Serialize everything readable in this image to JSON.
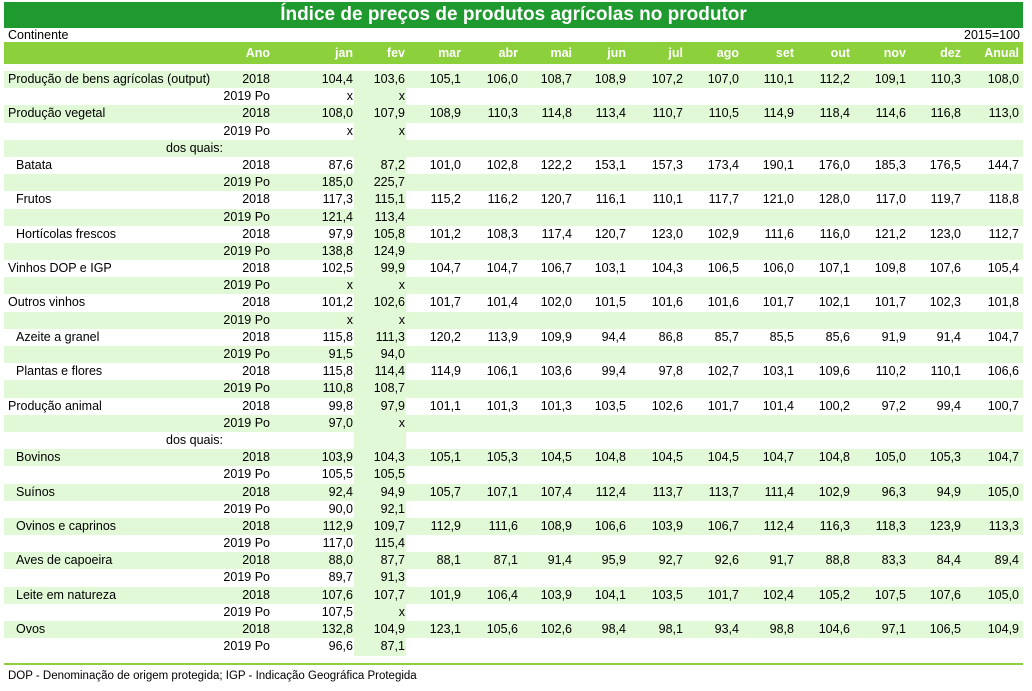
{
  "title": "Índice de preços de produtos agrícolas no produtor",
  "region": "Continente",
  "base": "2015=100",
  "columns": [
    "Ano",
    "jan",
    "fev",
    "mar",
    "abr",
    "mai",
    "jun",
    "jul",
    "ago",
    "set",
    "out",
    "nov",
    "dez",
    "Anual"
  ],
  "rows": [
    {
      "label": "Produção de bens agrícolas (output)",
      "indent": 0,
      "year": "2018",
      "values": [
        "104,4",
        "103,6",
        "105,1",
        "106,0",
        "108,7",
        "108,9",
        "107,2",
        "107,0",
        "110,1",
        "112,2",
        "109,1",
        "110,3",
        "108,0"
      ]
    },
    {
      "label": "",
      "indent": 0,
      "year": "2019 Po",
      "values": [
        "x",
        "x",
        "",
        "",
        "",
        "",
        "",
        "",
        "",
        "",
        "",
        "",
        ""
      ]
    },
    {
      "label": "Produção vegetal",
      "indent": 0,
      "year": "2018",
      "values": [
        "108,0",
        "107,9",
        "108,9",
        "110,3",
        "114,8",
        "113,4",
        "110,7",
        "110,5",
        "114,9",
        "118,4",
        "114,6",
        "116,8",
        "113,0"
      ]
    },
    {
      "label": "",
      "indent": 0,
      "year": "2019 Po",
      "values": [
        "x",
        "x",
        "",
        "",
        "",
        "",
        "",
        "",
        "",
        "",
        "",
        "",
        ""
      ]
    },
    {
      "label": "dos quais:",
      "indent": 2,
      "year": "",
      "values": [
        "",
        "",
        "",
        "",
        "",
        "",
        "",
        "",
        "",
        "",
        "",
        "",
        ""
      ]
    },
    {
      "label": "Batata",
      "indent": 1,
      "year": "2018",
      "values": [
        "87,6",
        "87,2",
        "101,0",
        "102,8",
        "122,2",
        "153,1",
        "157,3",
        "173,4",
        "190,1",
        "176,0",
        "185,3",
        "176,5",
        "144,7"
      ]
    },
    {
      "label": "",
      "indent": 0,
      "year": "2019 Po",
      "values": [
        "185,0",
        "225,7",
        "",
        "",
        "",
        "",
        "",
        "",
        "",
        "",
        "",
        "",
        ""
      ]
    },
    {
      "label": "Frutos",
      "indent": 1,
      "year": "2018",
      "values": [
        "117,3",
        "115,1",
        "115,2",
        "116,2",
        "120,7",
        "116,1",
        "110,1",
        "117,7",
        "121,0",
        "128,0",
        "117,0",
        "119,7",
        "118,8"
      ]
    },
    {
      "label": "",
      "indent": 0,
      "year": "2019 Po",
      "values": [
        "121,4",
        "113,4",
        "",
        "",
        "",
        "",
        "",
        "",
        "",
        "",
        "",
        "",
        ""
      ]
    },
    {
      "label": "Hortícolas frescos",
      "indent": 1,
      "year": "2018",
      "values": [
        "97,9",
        "105,8",
        "101,2",
        "108,3",
        "117,4",
        "120,7",
        "123,0",
        "102,9",
        "111,6",
        "116,0",
        "121,2",
        "123,0",
        "112,7"
      ]
    },
    {
      "label": "",
      "indent": 0,
      "year": "2019 Po",
      "values": [
        "138,8",
        "124,9",
        "",
        "",
        "",
        "",
        "",
        "",
        "",
        "",
        "",
        "",
        ""
      ]
    },
    {
      "label": "Vinhos DOP e IGP",
      "indent": 0,
      "year": "2018",
      "values": [
        "102,5",
        "99,9",
        "104,7",
        "104,7",
        "106,7",
        "103,1",
        "104,3",
        "106,5",
        "106,0",
        "107,1",
        "109,8",
        "107,6",
        "105,4"
      ]
    },
    {
      "label": "",
      "indent": 0,
      "year": "2019 Po",
      "values": [
        "x",
        "x",
        "",
        "",
        "",
        "",
        "",
        "",
        "",
        "",
        "",
        "",
        ""
      ]
    },
    {
      "label": "Outros vinhos",
      "indent": 0,
      "year": "2018",
      "values": [
        "101,2",
        "102,6",
        "101,7",
        "101,4",
        "102,0",
        "101,5",
        "101,6",
        "101,6",
        "101,7",
        "102,1",
        "101,7",
        "102,3",
        "101,8"
      ]
    },
    {
      "label": "",
      "indent": 0,
      "year": "2019 Po",
      "values": [
        "x",
        "x",
        "",
        "",
        "",
        "",
        "",
        "",
        "",
        "",
        "",
        "",
        ""
      ]
    },
    {
      "label": "Azeite a granel",
      "indent": 1,
      "year": "2018",
      "values": [
        "115,8",
        "111,3",
        "120,2",
        "113,9",
        "109,9",
        "94,4",
        "86,8",
        "85,7",
        "85,5",
        "85,6",
        "91,9",
        "91,4",
        "104,7"
      ]
    },
    {
      "label": "",
      "indent": 0,
      "year": "2019 Po",
      "values": [
        "91,5",
        "94,0",
        "",
        "",
        "",
        "",
        "",
        "",
        "",
        "",
        "",
        "",
        ""
      ]
    },
    {
      "label": "Plantas e flores",
      "indent": 1,
      "year": "2018",
      "values": [
        "115,8",
        "114,4",
        "114,9",
        "106,1",
        "103,6",
        "99,4",
        "97,8",
        "102,7",
        "103,1",
        "109,6",
        "110,2",
        "110,1",
        "106,6"
      ]
    },
    {
      "label": "",
      "indent": 0,
      "year": "2019 Po",
      "values": [
        "110,8",
        "108,7",
        "",
        "",
        "",
        "",
        "",
        "",
        "",
        "",
        "",
        "",
        ""
      ]
    },
    {
      "label": "Produção animal",
      "indent": 0,
      "year": "2018",
      "values": [
        "99,8",
        "97,9",
        "101,1",
        "101,3",
        "101,3",
        "103,5",
        "102,6",
        "101,7",
        "101,4",
        "100,2",
        "97,2",
        "99,4",
        "100,7"
      ]
    },
    {
      "label": "",
      "indent": 0,
      "year": "2019 Po",
      "values": [
        "97,0",
        "x",
        "",
        "",
        "",
        "",
        "",
        "",
        "",
        "",
        "",
        "",
        ""
      ]
    },
    {
      "label": "dos quais:",
      "indent": 2,
      "year": "",
      "values": [
        "",
        "",
        "",
        "",
        "",
        "",
        "",
        "",
        "",
        "",
        "",
        "",
        ""
      ]
    },
    {
      "label": "Bovinos",
      "indent": 1,
      "year": "2018",
      "values": [
        "103,9",
        "104,3",
        "105,1",
        "105,3",
        "104,5",
        "104,8",
        "104,5",
        "104,5",
        "104,7",
        "104,8",
        "105,0",
        "105,3",
        "104,7"
      ]
    },
    {
      "label": "",
      "indent": 0,
      "year": "2019 Po",
      "values": [
        "105,5",
        "105,5",
        "",
        "",
        "",
        "",
        "",
        "",
        "",
        "",
        "",
        "",
        ""
      ]
    },
    {
      "label": "Suínos",
      "indent": 1,
      "year": "2018",
      "values": [
        "92,4",
        "94,9",
        "105,7",
        "107,1",
        "107,4",
        "112,4",
        "113,7",
        "113,7",
        "111,4",
        "102,9",
        "96,3",
        "94,9",
        "105,0"
      ]
    },
    {
      "label": "",
      "indent": 0,
      "year": "2019 Po",
      "values": [
        "90,0",
        "92,1",
        "",
        "",
        "",
        "",
        "",
        "",
        "",
        "",
        "",
        "",
        ""
      ]
    },
    {
      "label": "Ovinos e caprinos",
      "indent": 1,
      "year": "2018",
      "values": [
        "112,9",
        "109,7",
        "112,9",
        "111,6",
        "108,9",
        "106,6",
        "103,9",
        "106,7",
        "112,4",
        "116,3",
        "118,3",
        "123,9",
        "113,3"
      ]
    },
    {
      "label": "",
      "indent": 0,
      "year": "2019 Po",
      "values": [
        "117,0",
        "115,4",
        "",
        "",
        "",
        "",
        "",
        "",
        "",
        "",
        "",
        "",
        ""
      ]
    },
    {
      "label": "Aves de capoeira",
      "indent": 1,
      "year": "2018",
      "values": [
        "88,0",
        "87,7",
        "88,1",
        "87,1",
        "91,4",
        "95,9",
        "92,7",
        "92,6",
        "91,7",
        "88,8",
        "83,3",
        "84,4",
        "89,4"
      ]
    },
    {
      "label": "",
      "indent": 0,
      "year": "2019 Po",
      "values": [
        "89,7",
        "91,3",
        "",
        "",
        "",
        "",
        "",
        "",
        "",
        "",
        "",
        "",
        ""
      ]
    },
    {
      "label": "Leite em natureza",
      "indent": 1,
      "year": "2018",
      "values": [
        "107,6",
        "107,7",
        "101,9",
        "106,4",
        "103,9",
        "104,1",
        "103,5",
        "101,7",
        "102,4",
        "105,2",
        "107,5",
        "107,6",
        "105,0"
      ]
    },
    {
      "label": "",
      "indent": 0,
      "year": "2019 Po",
      "values": [
        "107,5",
        "x",
        "",
        "",
        "",
        "",
        "",
        "",
        "",
        "",
        "",
        "",
        ""
      ]
    },
    {
      "label": "Ovos",
      "indent": 1,
      "year": "2018",
      "values": [
        "132,8",
        "104,9",
        "123,1",
        "105,6",
        "102,6",
        "98,4",
        "98,1",
        "93,4",
        "98,8",
        "104,6",
        "97,1",
        "106,5",
        "104,9"
      ]
    },
    {
      "label": "",
      "indent": 0,
      "year": "2019 Po",
      "values": [
        "96,6",
        "87,1",
        "",
        "",
        "",
        "",
        "",
        "",
        "",
        "",
        "",
        "",
        ""
      ]
    }
  ],
  "footnote": "DOP - Denominação de origem protegida; IGP - Indicação Geográfica Protegida"
}
